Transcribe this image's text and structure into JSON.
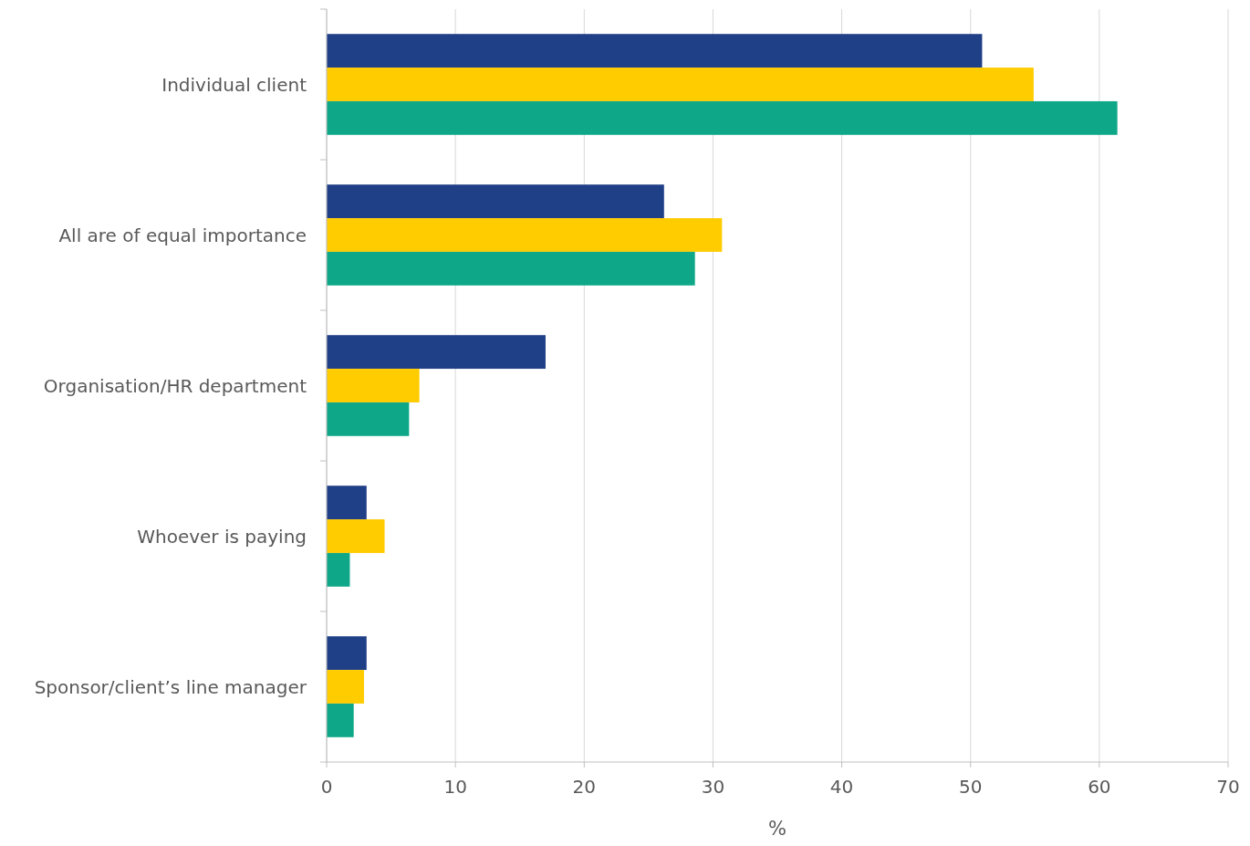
{
  "chart_data": {
    "type": "bar",
    "orientation": "horizontal",
    "xlabel": "%",
    "categories": [
      "Individual client",
      "All are of equal importance",
      "Organisation/HR department",
      "Whoever is paying",
      "Sponsor/client’s line manager"
    ],
    "series": [
      {
        "color": "#1f3f87",
        "values": [
          50.9,
          26.2,
          17.0,
          3.1,
          3.1
        ]
      },
      {
        "color": "#ffcc00",
        "values": [
          54.9,
          30.7,
          7.2,
          4.5,
          2.9
        ]
      },
      {
        "color": "#0ea888",
        "values": [
          61.4,
          28.6,
          6.4,
          1.8,
          2.1
        ]
      }
    ],
    "xlim": [
      0,
      70
    ],
    "xticks": [
      0,
      10,
      20,
      30,
      40,
      50,
      60,
      70
    ],
    "grid": "x"
  }
}
